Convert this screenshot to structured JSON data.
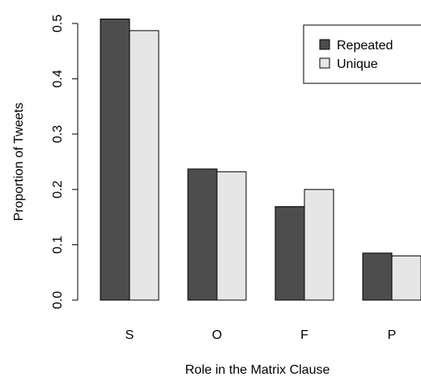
{
  "chart_data": {
    "type": "bar",
    "categories": [
      "S",
      "O",
      "F",
      "P"
    ],
    "series": [
      {
        "name": "Repeated",
        "values": [
          0.508,
          0.237,
          0.169,
          0.085
        ],
        "color": "#4d4d4d"
      },
      {
        "name": "Unique",
        "values": [
          0.487,
          0.232,
          0.2,
          0.08
        ],
        "color": "#e6e6e6"
      }
    ],
    "xlabel": "Role in the Matrix Clause",
    "ylabel": "Proportion of Tweets",
    "ylim": [
      0,
      0.5
    ],
    "yticks": [
      "0.0",
      "0.1",
      "0.2",
      "0.3",
      "0.4",
      "0.5"
    ],
    "legend_position": "top-right",
    "grid": false
  }
}
